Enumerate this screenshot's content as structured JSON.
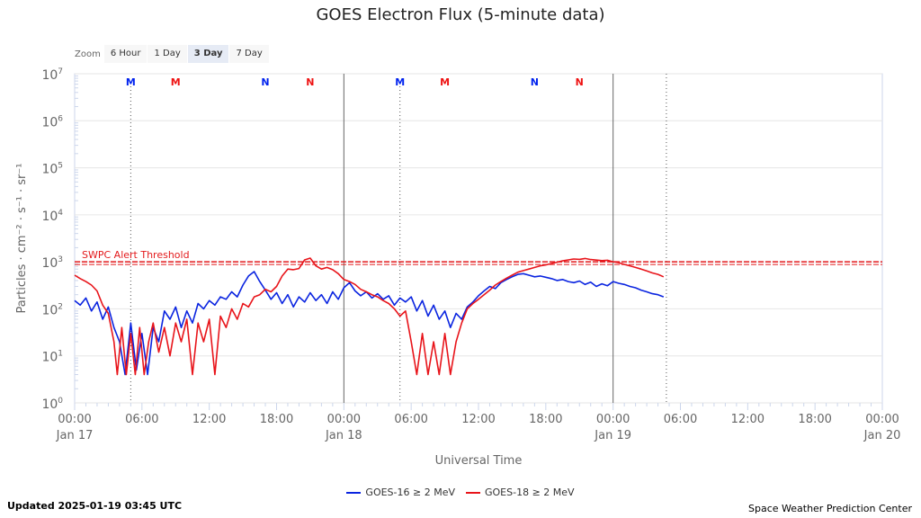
{
  "chart_data": {
    "type": "line",
    "title": "GOES Electron Flux (5-minute data)",
    "xlabel": "Universal Time",
    "ylabel": "Particles · cm⁻² · s⁻¹ · sr⁻¹",
    "y_scale": "log",
    "ylim": [
      1,
      10000000
    ],
    "x_range_hours": [
      0,
      72
    ],
    "x_ticks": [
      {
        "t": 0,
        "label": "00:00",
        "sub": "Jan 17"
      },
      {
        "t": 6,
        "label": "06:00",
        "sub": ""
      },
      {
        "t": 12,
        "label": "12:00",
        "sub": ""
      },
      {
        "t": 18,
        "label": "18:00",
        "sub": ""
      },
      {
        "t": 24,
        "label": "00:00",
        "sub": "Jan 18"
      },
      {
        "t": 30,
        "label": "06:00",
        "sub": ""
      },
      {
        "t": 36,
        "label": "12:00",
        "sub": ""
      },
      {
        "t": 42,
        "label": "18:00",
        "sub": ""
      },
      {
        "t": 48,
        "label": "00:00",
        "sub": "Jan 19"
      },
      {
        "t": 54,
        "label": "06:00",
        "sub": ""
      },
      {
        "t": 60,
        "label": "12:00",
        "sub": ""
      },
      {
        "t": 66,
        "label": "18:00",
        "sub": ""
      },
      {
        "t": 72,
        "label": "00:00",
        "sub": "Jan 20"
      }
    ],
    "y_ticks": [
      {
        "v": 1,
        "base": "10",
        "exp": "0"
      },
      {
        "v": 10,
        "base": "10",
        "exp": "1"
      },
      {
        "v": 100,
        "base": "10",
        "exp": "2"
      },
      {
        "v": 1000,
        "base": "10",
        "exp": "3"
      },
      {
        "v": 10000,
        "base": "10",
        "exp": "4"
      },
      {
        "v": 100000,
        "base": "10",
        "exp": "5"
      },
      {
        "v": 1000000,
        "base": "10",
        "exp": "6"
      },
      {
        "v": 10000000,
        "base": "10",
        "exp": "7"
      }
    ],
    "threshold": {
      "label": "SWPC Alert Threshold",
      "value": 1000,
      "color": "#e31a1c"
    },
    "day_lines_hours": [
      24,
      48
    ],
    "now_line_hours": 52.75,
    "markers": [
      {
        "t": 5,
        "label": "M",
        "color": "#0022ee",
        "line": true
      },
      {
        "t": 9,
        "label": "M",
        "color": "#ee1111",
        "line": false
      },
      {
        "t": 17,
        "label": "N",
        "color": "#0022ee",
        "line": false
      },
      {
        "t": 21,
        "label": "N",
        "color": "#ee1111",
        "line": false
      },
      {
        "t": 29,
        "label": "M",
        "color": "#0022ee",
        "line": true
      },
      {
        "t": 33,
        "label": "M",
        "color": "#ee1111",
        "line": false
      },
      {
        "t": 41,
        "label": "N",
        "color": "#0022ee",
        "line": false
      },
      {
        "t": 45,
        "label": "N",
        "color": "#ee1111",
        "line": false
      }
    ],
    "series": [
      {
        "name": "GOES-16 ≥ 2 MeV",
        "color": "#0a24e0",
        "points": [
          [
            0,
            150
          ],
          [
            0.5,
            120
          ],
          [
            1,
            170
          ],
          [
            1.5,
            90
          ],
          [
            2,
            140
          ],
          [
            2.5,
            60
          ],
          [
            3,
            110
          ],
          [
            3.5,
            40
          ],
          [
            4,
            20
          ],
          [
            4.5,
            4
          ],
          [
            5,
            50
          ],
          [
            5.5,
            5
          ],
          [
            6,
            30
          ],
          [
            6.5,
            4
          ],
          [
            7,
            40
          ],
          [
            7.5,
            20
          ],
          [
            8,
            90
          ],
          [
            8.5,
            60
          ],
          [
            9,
            110
          ],
          [
            9.5,
            40
          ],
          [
            10,
            90
          ],
          [
            10.5,
            50
          ],
          [
            11,
            130
          ],
          [
            11.5,
            100
          ],
          [
            12,
            150
          ],
          [
            12.5,
            120
          ],
          [
            13,
            180
          ],
          [
            13.5,
            160
          ],
          [
            14,
            230
          ],
          [
            14.5,
            180
          ],
          [
            15,
            320
          ],
          [
            15.5,
            500
          ],
          [
            16,
            620
          ],
          [
            16.5,
            380
          ],
          [
            17,
            250
          ],
          [
            17.5,
            160
          ],
          [
            18,
            220
          ],
          [
            18.5,
            130
          ],
          [
            19,
            200
          ],
          [
            19.5,
            110
          ],
          [
            20,
            180
          ],
          [
            20.5,
            140
          ],
          [
            21,
            220
          ],
          [
            21.5,
            150
          ],
          [
            22,
            200
          ],
          [
            22.5,
            130
          ],
          [
            23,
            230
          ],
          [
            23.5,
            160
          ],
          [
            24,
            280
          ],
          [
            24.5,
            360
          ],
          [
            25,
            240
          ],
          [
            25.5,
            190
          ],
          [
            26,
            230
          ],
          [
            26.5,
            170
          ],
          [
            27,
            210
          ],
          [
            27.5,
            160
          ],
          [
            28,
            190
          ],
          [
            28.5,
            120
          ],
          [
            29,
            170
          ],
          [
            29.5,
            140
          ],
          [
            30,
            180
          ],
          [
            30.5,
            90
          ],
          [
            31,
            150
          ],
          [
            31.5,
            70
          ],
          [
            32,
            120
          ],
          [
            32.5,
            60
          ],
          [
            33,
            90
          ],
          [
            33.5,
            40
          ],
          [
            34,
            80
          ],
          [
            34.5,
            60
          ],
          [
            35,
            110
          ],
          [
            35.5,
            140
          ],
          [
            36,
            190
          ],
          [
            36.5,
            240
          ],
          [
            37,
            300
          ],
          [
            37.5,
            270
          ],
          [
            38,
            360
          ],
          [
            38.5,
            420
          ],
          [
            39,
            480
          ],
          [
            39.5,
            540
          ],
          [
            40,
            560
          ],
          [
            40.5,
            520
          ],
          [
            41,
            480
          ],
          [
            41.5,
            500
          ],
          [
            42,
            470
          ],
          [
            42.5,
            440
          ],
          [
            43,
            400
          ],
          [
            43.5,
            420
          ],
          [
            44,
            380
          ],
          [
            44.5,
            360
          ],
          [
            45,
            390
          ],
          [
            45.5,
            330
          ],
          [
            46,
            370
          ],
          [
            46.5,
            300
          ],
          [
            47,
            340
          ],
          [
            47.5,
            310
          ],
          [
            48,
            380
          ],
          [
            48.5,
            350
          ],
          [
            49,
            330
          ],
          [
            49.5,
            300
          ],
          [
            50,
            280
          ],
          [
            50.5,
            250
          ],
          [
            51,
            230
          ],
          [
            51.5,
            210
          ],
          [
            52,
            200
          ],
          [
            52.5,
            180
          ]
        ]
      },
      {
        "name": "GOES-18 ≥ 2 MeV",
        "color": "#e8141a",
        "points": [
          [
            0,
            520
          ],
          [
            0.5,
            440
          ],
          [
            1,
            380
          ],
          [
            1.5,
            320
          ],
          [
            2,
            240
          ],
          [
            2.5,
            120
          ],
          [
            3,
            80
          ],
          [
            3.5,
            20
          ],
          [
            3.8,
            4
          ],
          [
            4.2,
            40
          ],
          [
            4.6,
            4
          ],
          [
            5,
            30
          ],
          [
            5.4,
            4
          ],
          [
            5.8,
            40
          ],
          [
            6.2,
            4
          ],
          [
            6.6,
            20
          ],
          [
            7,
            50
          ],
          [
            7.5,
            12
          ],
          [
            8,
            40
          ],
          [
            8.5,
            10
          ],
          [
            9,
            50
          ],
          [
            9.5,
            20
          ],
          [
            10,
            60
          ],
          [
            10.5,
            4
          ],
          [
            11,
            50
          ],
          [
            11.5,
            20
          ],
          [
            12,
            60
          ],
          [
            12.5,
            4
          ],
          [
            13,
            70
          ],
          [
            13.5,
            40
          ],
          [
            14,
            100
          ],
          [
            14.5,
            60
          ],
          [
            15,
            130
          ],
          [
            15.5,
            110
          ],
          [
            16,
            180
          ],
          [
            16.5,
            200
          ],
          [
            17,
            260
          ],
          [
            17.5,
            230
          ],
          [
            18,
            300
          ],
          [
            18.5,
            500
          ],
          [
            19,
            700
          ],
          [
            19.5,
            680
          ],
          [
            20,
            720
          ],
          [
            20.5,
            1100
          ],
          [
            21,
            1200
          ],
          [
            21.5,
            820
          ],
          [
            22,
            700
          ],
          [
            22.5,
            760
          ],
          [
            23,
            680
          ],
          [
            23.5,
            560
          ],
          [
            24,
            420
          ],
          [
            24.5,
            380
          ],
          [
            25,
            330
          ],
          [
            25.5,
            260
          ],
          [
            26,
            230
          ],
          [
            26.5,
            200
          ],
          [
            27,
            180
          ],
          [
            27.5,
            150
          ],
          [
            28,
            130
          ],
          [
            28.5,
            100
          ],
          [
            29,
            70
          ],
          [
            29.5,
            90
          ],
          [
            30,
            20
          ],
          [
            30.5,
            4
          ],
          [
            31,
            30
          ],
          [
            31.5,
            4
          ],
          [
            32,
            20
          ],
          [
            32.5,
            4
          ],
          [
            33,
            30
          ],
          [
            33.5,
            4
          ],
          [
            34,
            20
          ],
          [
            34.5,
            50
          ],
          [
            35,
            100
          ],
          [
            35.5,
            130
          ],
          [
            36,
            160
          ],
          [
            36.5,
            200
          ],
          [
            37,
            250
          ],
          [
            37.5,
            320
          ],
          [
            38,
            380
          ],
          [
            38.5,
            450
          ],
          [
            39,
            520
          ],
          [
            39.5,
            600
          ],
          [
            40,
            650
          ],
          [
            40.5,
            700
          ],
          [
            41,
            760
          ],
          [
            41.5,
            820
          ],
          [
            42,
            860
          ],
          [
            42.5,
            920
          ],
          [
            43,
            980
          ],
          [
            43.5,
            1050
          ],
          [
            44,
            1100
          ],
          [
            44.5,
            1150
          ],
          [
            45,
            1130
          ],
          [
            45.5,
            1180
          ],
          [
            46,
            1120
          ],
          [
            46.5,
            1090
          ],
          [
            47,
            1060
          ],
          [
            47.5,
            1080
          ],
          [
            48,
            1000
          ],
          [
            48.5,
            960
          ],
          [
            49,
            880
          ],
          [
            49.5,
            820
          ],
          [
            50,
            760
          ],
          [
            50.5,
            700
          ],
          [
            51,
            640
          ],
          [
            51.5,
            580
          ],
          [
            52,
            540
          ],
          [
            52.5,
            480
          ]
        ]
      }
    ]
  },
  "zoom": {
    "label": "Zoom",
    "buttons": [
      {
        "label": "6 Hour",
        "active": false
      },
      {
        "label": "1 Day",
        "active": false
      },
      {
        "label": "3 Day",
        "active": true
      },
      {
        "label": "7 Day",
        "active": false
      }
    ]
  },
  "footer": {
    "updated": "Updated 2025-01-19 03:45 UTC",
    "credit": "Space Weather Prediction Center"
  }
}
